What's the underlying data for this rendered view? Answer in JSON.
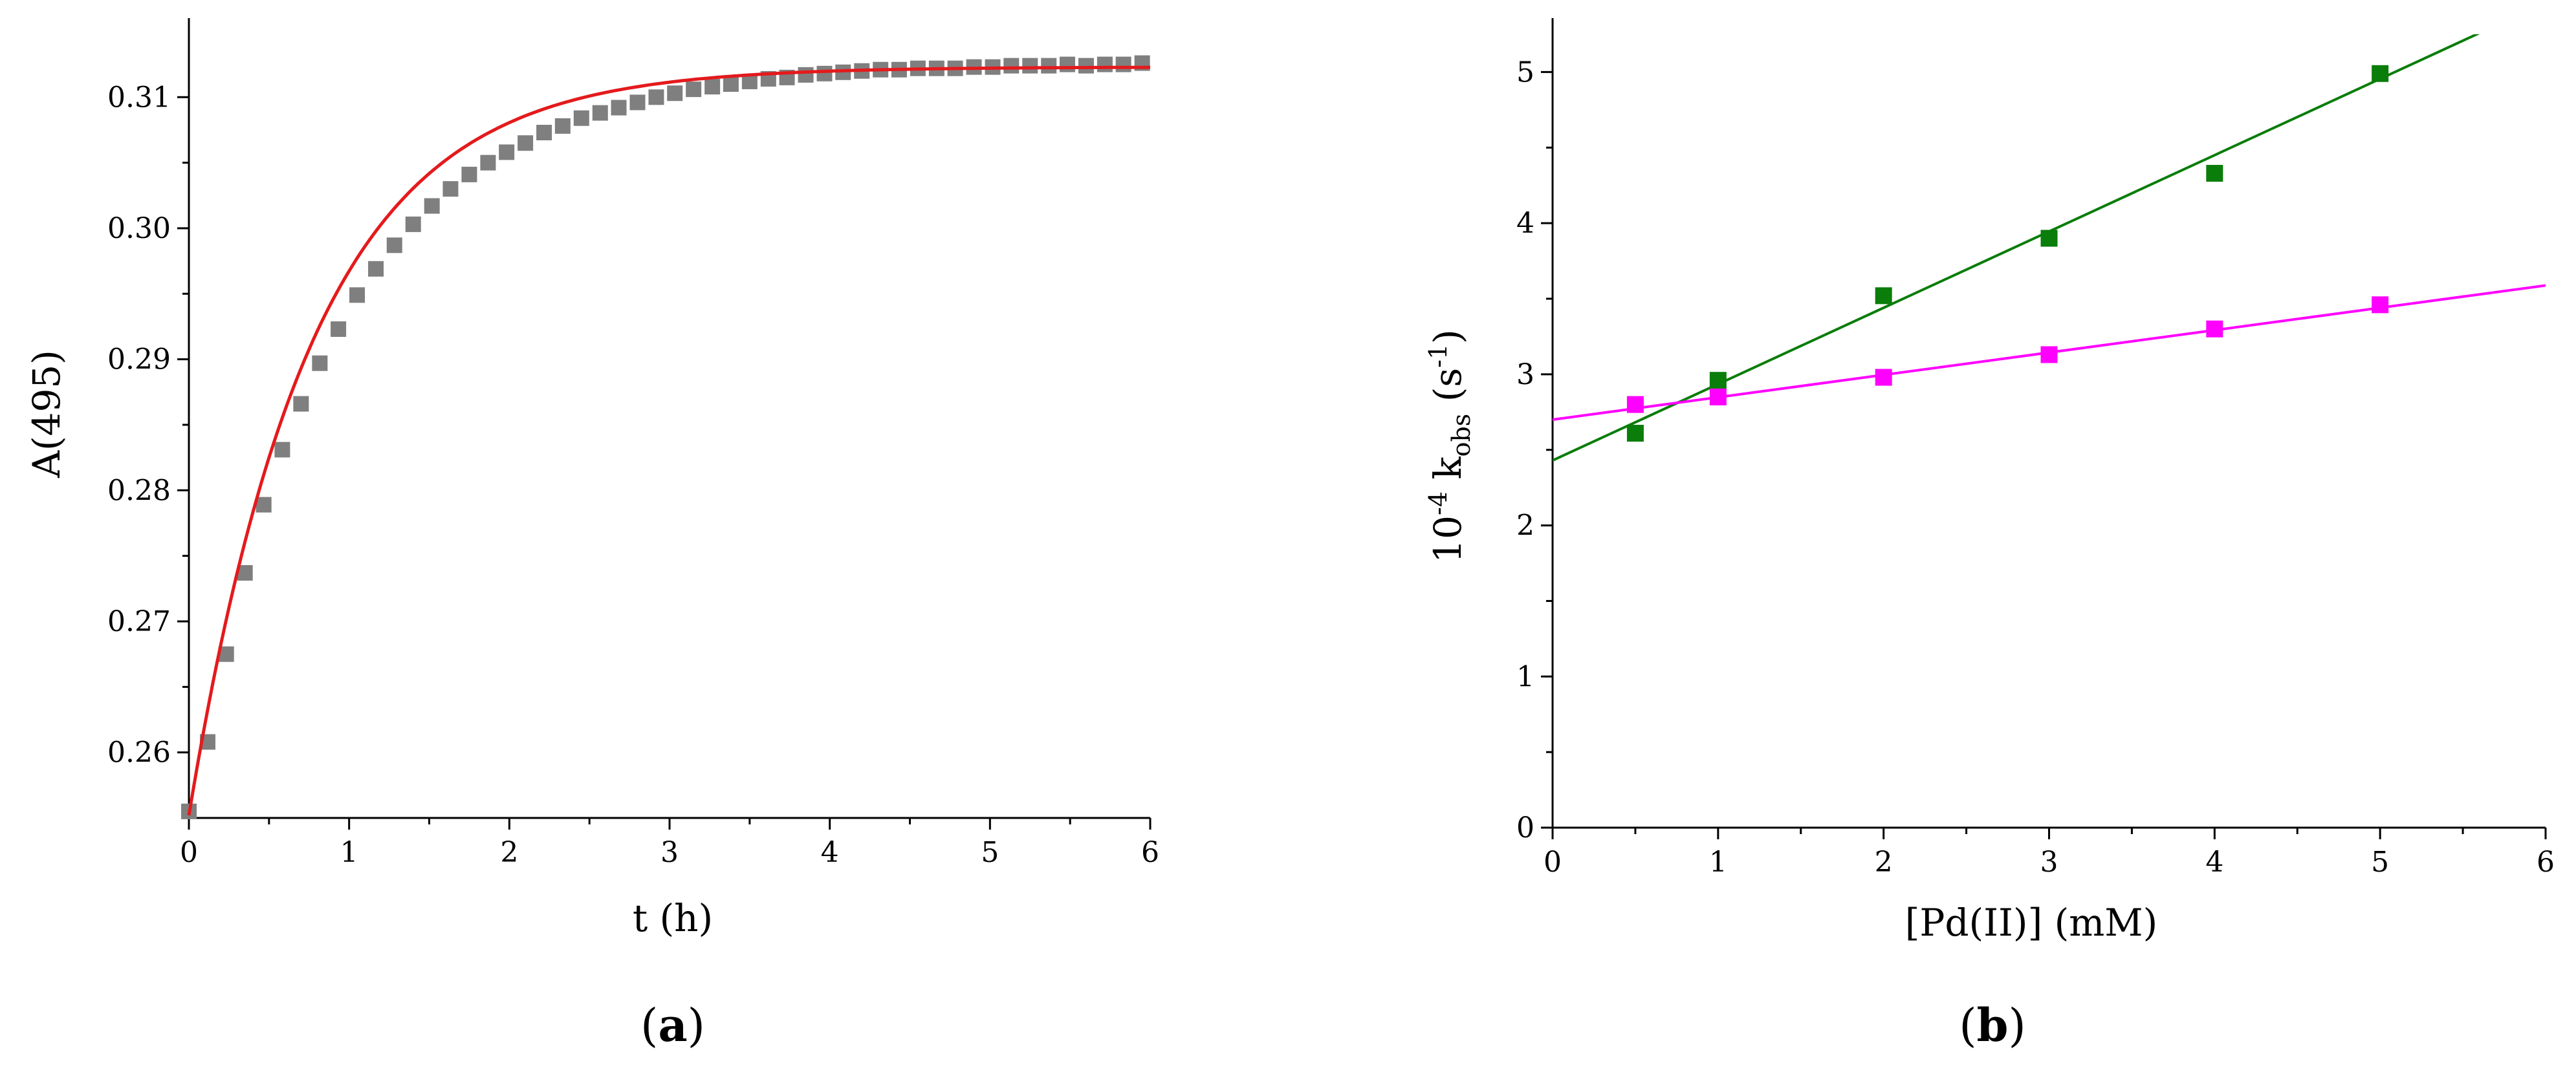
{
  "chart_data": [
    {
      "type": "scatter",
      "panel_label": {
        "open": "(",
        "letter": "a",
        "close": ")"
      },
      "xlabel": "t (h)",
      "ylabel": "A(495)",
      "xlim": [
        0,
        6
      ],
      "ylim": [
        0.255,
        0.3148
      ],
      "x_ticks": [
        0,
        1,
        2,
        3,
        4,
        5,
        6
      ],
      "y_ticks": [
        0.26,
        0.27,
        0.28,
        0.29,
        0.3,
        0.31
      ],
      "y_tick_labels": [
        "0.26",
        "0.27",
        "0.28",
        "0.29",
        "0.30",
        "0.31"
      ],
      "series": [
        {
          "kind": "markers",
          "color": "#7f7f7f",
          "x": [
            0,
            0.117,
            0.233,
            0.35,
            0.467,
            0.583,
            0.7,
            0.817,
            0.933,
            1.05,
            1.167,
            1.283,
            1.4,
            1.517,
            1.633,
            1.75,
            1.867,
            1.983,
            2.1,
            2.217,
            2.333,
            2.45,
            2.567,
            2.683,
            2.8,
            2.917,
            3.033,
            3.15,
            3.267,
            3.383,
            3.5,
            3.617,
            3.733,
            3.85,
            3.967,
            4.083,
            4.2,
            4.317,
            4.433,
            4.55,
            4.667,
            4.783,
            4.9,
            5.017,
            5.133,
            5.25,
            5.367,
            5.483,
            5.6,
            5.717,
            5.833,
            5.95
          ],
          "y": [
            0.2555,
            0.2608,
            0.2675,
            0.2737,
            0.2789,
            0.2831,
            0.2866,
            0.2897,
            0.2923,
            0.2949,
            0.2969,
            0.2987,
            0.3003,
            0.3017,
            0.303,
            0.3041,
            0.305,
            0.3058,
            0.3065,
            0.3073,
            0.3078,
            0.3084,
            0.3088,
            0.3092,
            0.3096,
            0.31,
            0.3103,
            0.3106,
            0.3108,
            0.311,
            0.3112,
            0.3114,
            0.3115,
            0.3117,
            0.3118,
            0.3119,
            0.312,
            0.3121,
            0.3121,
            0.3122,
            0.3122,
            0.3122,
            0.3123,
            0.3123,
            0.3124,
            0.3124,
            0.3124,
            0.3125,
            0.3124,
            0.3125,
            0.3125,
            0.3126
          ]
        },
        {
          "kind": "curve",
          "color": "#e41a1c",
          "model": "exponential rise",
          "params": {
            "A0": 0.2552,
            "Ainf": 0.3123,
            "k": 1.3
          }
        }
      ]
    },
    {
      "type": "scatter",
      "panel_label": {
        "open": "(",
        "letter": "b",
        "close": ")"
      },
      "xlabel": "[Pd(II)] (mM)",
      "ylabel": {
        "prefix": "10",
        "exp": "-4",
        "k": " k",
        "sub": "obs",
        "unit_open": " (s",
        "unit_exp": "-1",
        "unit_close": ")"
      },
      "xlim": [
        0,
        6
      ],
      "ylim": [
        0,
        5.25
      ],
      "x_ticks": [
        0,
        1,
        2,
        3,
        4,
        5,
        6
      ],
      "y_ticks": [
        0,
        1,
        2,
        3,
        4,
        5
      ],
      "series": [
        {
          "kind": "markers+line",
          "color": "#0a7d0a",
          "x": [
            0.5,
            1,
            2,
            3,
            4,
            5
          ],
          "y": [
            2.61,
            2.96,
            3.52,
            3.9,
            4.33,
            4.99
          ],
          "line": {
            "intercept": 2.43,
            "slope": 0.505
          }
        },
        {
          "kind": "markers+line",
          "color": "#ff00ff",
          "x": [
            0.5,
            1,
            2,
            3,
            4,
            5
          ],
          "y": [
            2.8,
            2.85,
            2.98,
            3.13,
            3.3,
            3.46
          ],
          "line": {
            "intercept": 2.7,
            "slope": 0.148
          }
        }
      ]
    }
  ]
}
